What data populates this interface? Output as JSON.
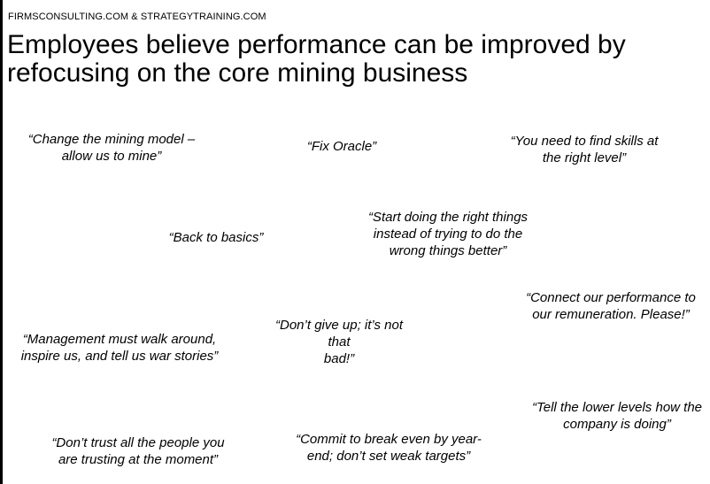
{
  "header": {
    "source": "FIRMSCONSULTING.COM & STRATEGYTRAINING.COM",
    "title": "Employees believe performance can be improved by refocusing on the core mining business"
  },
  "quotes": [
    "“Change the mining model –\nallow us to mine”",
    "“Fix Oracle”",
    "“You need to find skills at\nthe right level”",
    "“Start doing the right things\ninstead of trying to do the\nwrong things better”",
    "“Back to basics”",
    "“Connect our performance to\nour remuneration. Please!”",
    "“Don’t give up; it’s not that\nbad!”",
    "“Management must walk around,\ninspire us, and tell us war stories”",
    "“Tell the lower levels how the\ncompany is doing”",
    "“Commit to break even by year-\nend; don’t set weak targets”",
    "“Don’t trust all the people you\nare trusting at the moment”"
  ]
}
